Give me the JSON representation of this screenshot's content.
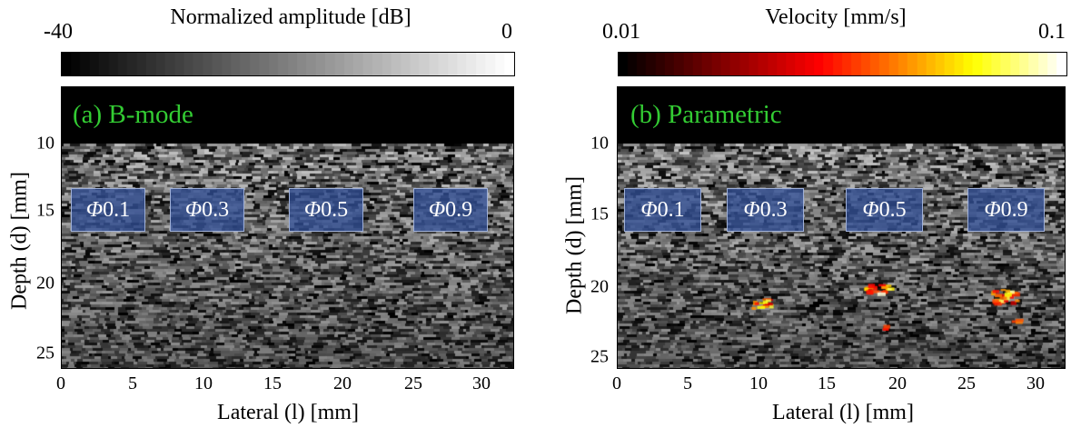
{
  "figure": {
    "panels": [
      {
        "id": "a",
        "label": "(a) B-mode",
        "colorbar": {
          "title": "Normalized amplitude [dB]",
          "min_label": "-40",
          "max_label": "0",
          "colormap": "gray"
        },
        "y_ticks": [
          "10",
          "15",
          "20",
          "25"
        ],
        "x_ticks": [
          "0",
          "5",
          "10",
          "15",
          "20",
          "25",
          "30"
        ],
        "ylabel": "Depth (d) [mm]",
        "xlabel": "Lateral (l) [mm]",
        "markers": [
          {
            "symbol": "Φ",
            "value": "0.1"
          },
          {
            "symbol": "Φ",
            "value": "0.3"
          },
          {
            "symbol": "Φ",
            "value": "0.5"
          },
          {
            "symbol": "Φ",
            "value": "0.9"
          }
        ]
      },
      {
        "id": "b",
        "label": "(b) Parametric",
        "colorbar": {
          "title": "Velocity [mm/s]",
          "min_label": "0.01",
          "max_label": "0.1",
          "colormap": "hot"
        },
        "y_ticks": [
          "10",
          "15",
          "20",
          "25"
        ],
        "x_ticks": [
          "0",
          "5",
          "10",
          "15",
          "20",
          "25",
          "30"
        ],
        "ylabel": "Depth (d) [mm]",
        "xlabel": "Lateral (l) [mm]",
        "markers": [
          {
            "symbol": "Φ",
            "value": "0.1"
          },
          {
            "symbol": "Φ",
            "value": "0.3"
          },
          {
            "symbol": "Φ",
            "value": "0.5"
          },
          {
            "symbol": "Φ",
            "value": "0.9"
          }
        ]
      }
    ]
  }
}
